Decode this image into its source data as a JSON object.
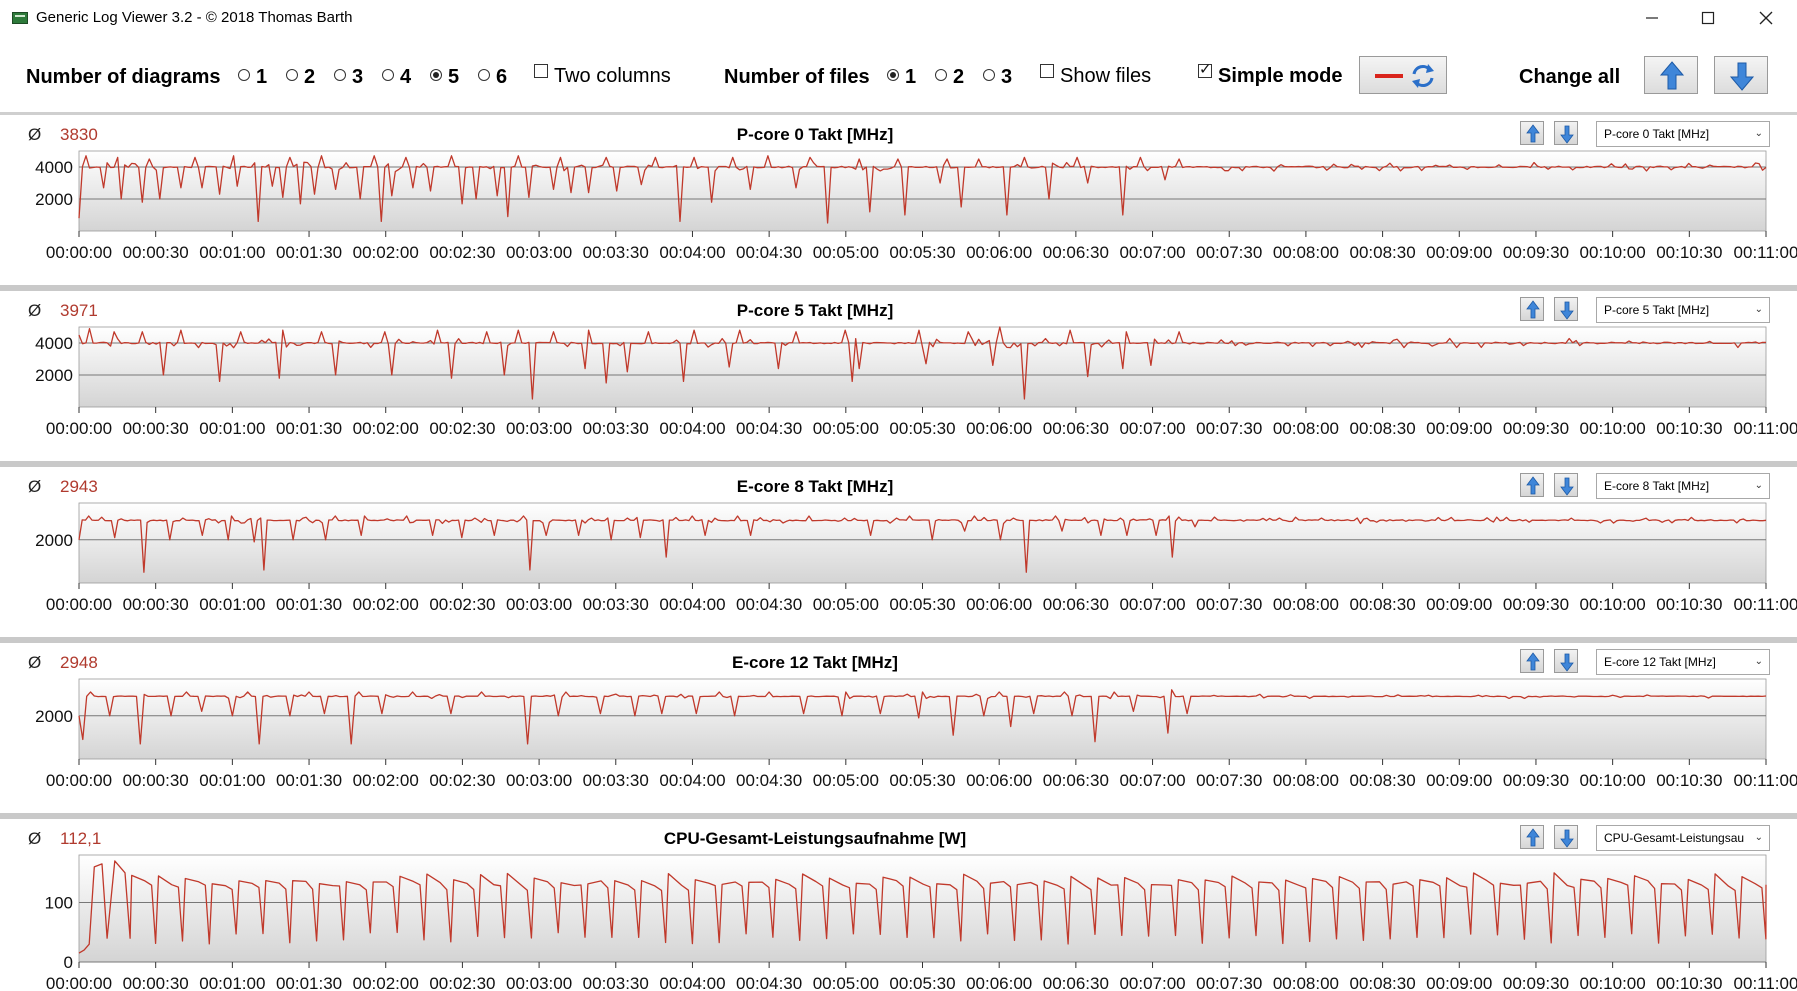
{
  "window": {
    "title": "Generic Log Viewer 3.2 - © 2018 Thomas Barth"
  },
  "toolbar": {
    "diagrams_label": "Number of diagrams",
    "diagram_options": [
      "1",
      "2",
      "3",
      "4",
      "5",
      "6"
    ],
    "diagrams_selected": "5",
    "two_columns_label": "Two columns",
    "two_columns_checked": false,
    "files_label": "Number of files",
    "file_options": [
      "1",
      "2",
      "3"
    ],
    "files_selected": "1",
    "show_files_label": "Show files",
    "show_files_checked": false,
    "simple_mode_label": "Simple mode",
    "simple_mode_checked": true,
    "change_all_label": "Change all"
  },
  "colors": {
    "line": "#c0392b",
    "grid": "#777777",
    "avg": "#b03a2e"
  },
  "chart_data": [
    {
      "type": "line",
      "title": "P-core 0 Takt [MHz]",
      "average": "3830",
      "select_value": "P-core 0 Takt [MHz]",
      "ylim": [
        0,
        5000
      ],
      "yticks": [
        "2000",
        "4000"
      ],
      "xlim": [
        "00:00:00",
        "00:11:00"
      ],
      "xticks": [
        "00:00:00",
        "00:00:30",
        "00:01:00",
        "00:01:30",
        "00:02:00",
        "00:02:30",
        "00:03:00",
        "00:03:30",
        "00:04:00",
        "00:04:30",
        "00:05:00",
        "00:05:30",
        "00:06:00",
        "00:06:30",
        "00:07:00",
        "00:07:30",
        "00:08:00",
        "00:08:30",
        "00:09:00",
        "00:09:30",
        "00:10:00",
        "00:10:30",
        "00:11:00"
      ],
      "baseline": 4000,
      "variation": 300,
      "dips": [
        [
          0,
          800
        ],
        [
          10,
          2700
        ],
        [
          17,
          2000
        ],
        [
          25,
          1800
        ],
        [
          32,
          2000
        ],
        [
          40,
          2700
        ],
        [
          48,
          2700
        ],
        [
          55,
          2300
        ],
        [
          62,
          2800
        ],
        [
          70,
          600
        ],
        [
          75,
          2800
        ],
        [
          80,
          2100
        ],
        [
          87,
          1700
        ],
        [
          92,
          2300
        ],
        [
          100,
          2600
        ],
        [
          110,
          2000
        ],
        [
          118,
          600
        ],
        [
          123,
          2200
        ],
        [
          130,
          2700
        ],
        [
          138,
          2500
        ],
        [
          150,
          1700
        ],
        [
          155,
          2000
        ],
        [
          163,
          2200
        ],
        [
          168,
          900
        ],
        [
          176,
          2100
        ],
        [
          186,
          2600
        ],
        [
          193,
          2400
        ],
        [
          200,
          2400
        ],
        [
          210,
          2500
        ],
        [
          220,
          2900
        ],
        [
          235,
          600
        ],
        [
          247,
          1800
        ],
        [
          262,
          2600
        ],
        [
          281,
          2700
        ],
        [
          293,
          500
        ],
        [
          310,
          1200
        ],
        [
          323,
          1000
        ],
        [
          337,
          3000
        ],
        [
          345,
          1500
        ],
        [
          363,
          1000
        ],
        [
          380,
          2000
        ],
        [
          395,
          3000
        ],
        [
          408,
          1000
        ],
        [
          425,
          3200
        ]
      ],
      "peaks": [
        [
          3,
          4700
        ],
        [
          15,
          4600
        ],
        [
          28,
          4500
        ],
        [
          45,
          4600
        ],
        [
          60,
          4700
        ],
        [
          83,
          4600
        ],
        [
          95,
          4700
        ],
        [
          115,
          4700
        ],
        [
          128,
          4600
        ],
        [
          146,
          4700
        ],
        [
          172,
          4700
        ],
        [
          188,
          4600
        ],
        [
          206,
          4600
        ],
        [
          226,
          4600
        ],
        [
          240,
          4600
        ],
        [
          256,
          4600
        ],
        [
          270,
          4700
        ],
        [
          286,
          4600
        ],
        [
          305,
          4500
        ],
        [
          320,
          4500
        ],
        [
          340,
          4500
        ],
        [
          352,
          4500
        ],
        [
          370,
          4600
        ],
        [
          390,
          4600
        ],
        [
          415,
          4600
        ],
        [
          430,
          4500
        ]
      ],
      "points": 480
    },
    {
      "type": "line",
      "title": "P-core 5 Takt [MHz]",
      "average": "3971",
      "select_value": "P-core 5 Takt [MHz]",
      "ylim": [
        0,
        5000
      ],
      "yticks": [
        "2000",
        "4000"
      ],
      "xlim": [
        "00:00:00",
        "00:11:00"
      ],
      "xticks": [
        "00:00:00",
        "00:00:30",
        "00:01:00",
        "00:01:30",
        "00:02:00",
        "00:02:30",
        "00:03:00",
        "00:03:30",
        "00:04:00",
        "00:04:30",
        "00:05:00",
        "00:05:30",
        "00:06:00",
        "00:06:30",
        "00:07:00",
        "00:07:30",
        "00:08:00",
        "00:08:30",
        "00:09:00",
        "00:09:30",
        "00:10:00",
        "00:10:30",
        "00:11:00"
      ],
      "baseline": 4000,
      "variation": 300,
      "dips": [
        [
          0,
          4500
        ],
        [
          33,
          2000
        ],
        [
          55,
          1600
        ],
        [
          78,
          1800
        ],
        [
          100,
          2000
        ],
        [
          122,
          2000
        ],
        [
          146,
          1800
        ],
        [
          166,
          2000
        ],
        [
          177,
          500
        ],
        [
          198,
          2400
        ],
        [
          206,
          1500
        ],
        [
          215,
          2200
        ],
        [
          236,
          1600
        ],
        [
          255,
          2500
        ],
        [
          273,
          2400
        ],
        [
          302,
          1600
        ],
        [
          305,
          2400
        ],
        [
          332,
          2700
        ],
        [
          358,
          2600
        ],
        [
          370,
          500
        ],
        [
          395,
          1900
        ],
        [
          409,
          2400
        ],
        [
          420,
          2600
        ]
      ],
      "peaks": [
        [
          4,
          4900
        ],
        [
          14,
          4700
        ],
        [
          25,
          4700
        ],
        [
          40,
          4800
        ],
        [
          63,
          4700
        ],
        [
          80,
          4800
        ],
        [
          95,
          4700
        ],
        [
          120,
          4700
        ],
        [
          140,
          4800
        ],
        [
          160,
          4700
        ],
        [
          172,
          4800
        ],
        [
          185,
          4700
        ],
        [
          200,
          4800
        ],
        [
          223,
          4700
        ],
        [
          240,
          4800
        ],
        [
          258,
          4800
        ],
        [
          280,
          4700
        ],
        [
          300,
          4800
        ],
        [
          328,
          4800
        ],
        [
          348,
          4700
        ],
        [
          360,
          5000
        ],
        [
          388,
          4800
        ],
        [
          410,
          4700
        ],
        [
          430,
          4700
        ]
      ],
      "points": 480
    },
    {
      "type": "line",
      "title": "E-core 8 Takt [MHz]",
      "average": "2943",
      "select_value": "E-core 8 Takt [MHz]",
      "ylim": [
        0,
        3700
      ],
      "yticks": [
        "2000"
      ],
      "xlim": [
        "00:00:00",
        "00:11:00"
      ],
      "xticks": [
        "00:00:00",
        "00:00:30",
        "00:01:00",
        "00:01:30",
        "00:02:00",
        "00:02:30",
        "00:03:00",
        "00:03:30",
        "00:04:00",
        "00:04:30",
        "00:05:00",
        "00:05:30",
        "00:06:00",
        "00:06:30",
        "00:07:00",
        "00:07:30",
        "00:08:00",
        "00:08:30",
        "00:09:00",
        "00:09:30",
        "00:10:00",
        "00:10:30",
        "00:11:00"
      ],
      "baseline": 2900,
      "variation": 150,
      "dips": [
        [
          0,
          2000
        ],
        [
          14,
          2100
        ],
        [
          25,
          500
        ],
        [
          35,
          2000
        ],
        [
          48,
          2200
        ],
        [
          58,
          2000
        ],
        [
          68,
          1900
        ],
        [
          72,
          600
        ],
        [
          84,
          2000
        ],
        [
          96,
          2000
        ],
        [
          111,
          2200
        ],
        [
          128,
          1900
        ],
        [
          138,
          2200
        ],
        [
          150,
          2100
        ],
        [
          162,
          2200
        ],
        [
          176,
          600
        ],
        [
          183,
          2200
        ],
        [
          196,
          2200
        ],
        [
          208,
          2000
        ],
        [
          220,
          2100
        ],
        [
          230,
          1200
        ],
        [
          245,
          2200
        ],
        [
          263,
          2200
        ],
        [
          286,
          2400
        ],
        [
          300,
          600
        ],
        [
          310,
          2200
        ],
        [
          334,
          2000
        ],
        [
          347,
          2400
        ],
        [
          360,
          2000
        ],
        [
          370,
          500
        ],
        [
          384,
          2400
        ],
        [
          400,
          2200
        ],
        [
          410,
          2200
        ],
        [
          422,
          2200
        ],
        [
          428,
          1200
        ],
        [
          437,
          2600
        ]
      ],
      "peaks": [
        [
          4,
          3100
        ],
        [
          40,
          3000
        ],
        [
          60,
          3100
        ],
        [
          88,
          3000
        ],
        [
          100,
          3100
        ],
        [
          112,
          3100
        ],
        [
          128,
          3100
        ],
        [
          155,
          3000
        ],
        [
          174,
          3100
        ],
        [
          200,
          3000
        ],
        [
          214,
          3000
        ],
        [
          240,
          3100
        ],
        [
          258,
          3100
        ],
        [
          285,
          3100
        ],
        [
          300,
          3000
        ],
        [
          325,
          3100
        ],
        [
          350,
          3100
        ],
        [
          365,
          3000
        ],
        [
          382,
          3100
        ],
        [
          408,
          3000
        ],
        [
          426,
          3100
        ]
      ],
      "points": 520
    },
    {
      "type": "line",
      "title": "E-core 12 Takt [MHz]",
      "average": "2948",
      "select_value": "E-core 12 Takt [MHz]",
      "ylim": [
        0,
        3700
      ],
      "yticks": [
        "2000"
      ],
      "xlim": [
        "00:00:00",
        "00:11:00"
      ],
      "xticks": [
        "00:00:00",
        "00:00:30",
        "00:01:00",
        "00:01:30",
        "00:02:00",
        "00:02:30",
        "00:03:00",
        "00:03:30",
        "00:04:00",
        "00:04:30",
        "00:05:00",
        "00:05:30",
        "00:06:00",
        "00:06:30",
        "00:07:00",
        "00:07:30",
        "00:08:00",
        "00:08:30",
        "00:09:00",
        "00:09:30",
        "00:10:00",
        "00:10:30",
        "00:11:00"
      ],
      "baseline": 2900,
      "variation": 100,
      "dips": [
        [
          0,
          2000
        ],
        [
          2,
          900
        ],
        [
          12,
          2000
        ],
        [
          24,
          700
        ],
        [
          36,
          2000
        ],
        [
          48,
          2200
        ],
        [
          60,
          2000
        ],
        [
          70,
          700
        ],
        [
          83,
          2000
        ],
        [
          96,
          2100
        ],
        [
          106,
          700
        ],
        [
          118,
          2100
        ],
        [
          130,
          1900
        ],
        [
          146,
          2100
        ],
        [
          158,
          2000
        ],
        [
          176,
          700
        ],
        [
          188,
          2000
        ],
        [
          204,
          2100
        ],
        [
          218,
          2000
        ],
        [
          228,
          2100
        ],
        [
          242,
          2100
        ],
        [
          256,
          2000
        ],
        [
          270,
          2100
        ],
        [
          284,
          2100
        ],
        [
          298,
          2000
        ],
        [
          314,
          2100
        ],
        [
          328,
          1900
        ],
        [
          342,
          1100
        ],
        [
          354,
          2000
        ],
        [
          364,
          1500
        ],
        [
          374,
          2100
        ],
        [
          388,
          2000
        ],
        [
          398,
          800
        ],
        [
          412,
          2200
        ],
        [
          426,
          1200
        ],
        [
          434,
          2100
        ]
      ],
      "peaks": [
        [
          4,
          3100
        ],
        [
          42,
          3100
        ],
        [
          66,
          3100
        ],
        [
          90,
          3100
        ],
        [
          110,
          3100
        ],
        [
          130,
          3100
        ],
        [
          158,
          3100
        ],
        [
          190,
          3100
        ],
        [
          210,
          3000
        ],
        [
          250,
          3100
        ],
        [
          270,
          3100
        ],
        [
          300,
          3100
        ],
        [
          330,
          3100
        ],
        [
          360,
          3100
        ],
        [
          385,
          3100
        ],
        [
          405,
          3100
        ],
        [
          427,
          3200
        ]
      ],
      "points": 440
    },
    {
      "type": "line",
      "title": "CPU-Gesamt-Leistungsaufnahme [W]",
      "average": "112,1",
      "select_value": "CPU-Gesamt-Leistungsau",
      "ylim": [
        0,
        180
      ],
      "yticks": [
        "0",
        "100"
      ],
      "xlim": [
        "00:00:00",
        "00:11:00"
      ],
      "xticks": [
        "00:00:00",
        "00:00:30",
        "00:01:00",
        "00:01:30",
        "00:02:00",
        "00:02:30",
        "00:03:00",
        "00:03:30",
        "00:04:00",
        "00:04:30",
        "00:05:00",
        "00:05:30",
        "00:06:00",
        "00:06:30",
        "00:07:00",
        "00:07:30",
        "00:08:00",
        "00:08:30",
        "00:09:00",
        "00:09:30",
        "00:10:00",
        "00:10:30",
        "00:11:00"
      ],
      "baseline": 140,
      "variation": 10,
      "sawtooth": {
        "period_s": 10.5,
        "high": 140,
        "low": 40
      },
      "start": [
        [
          0,
          15
        ],
        [
          2,
          20
        ],
        [
          4,
          30
        ],
        [
          6,
          160
        ],
        [
          9,
          165
        ],
        [
          11,
          40
        ],
        [
          14,
          170
        ],
        [
          18,
          150
        ],
        [
          20,
          40
        ]
      ],
      "points": 0
    }
  ]
}
